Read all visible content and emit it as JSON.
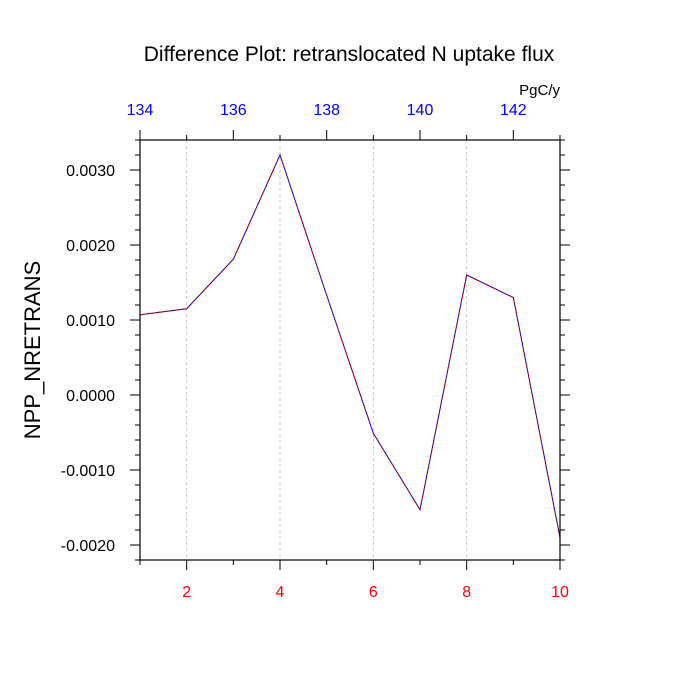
{
  "chart_data": {
    "type": "line",
    "title": "Difference Plot: retranslocated N uptake flux",
    "ylabel": "NPP_NRETRANS",
    "top_axis_unit": "PgC/y",
    "xlim": [
      1,
      10
    ],
    "ylim": [
      -0.0022,
      0.0034
    ],
    "x_ticks": [
      2,
      4,
      6,
      8,
      10
    ],
    "x_tick_labels": [
      "2",
      "4",
      "6",
      "8",
      "10"
    ],
    "y_ticks": [
      0.003,
      0.002,
      0.001,
      0.0,
      -0.001,
      -0.002
    ],
    "y_tick_labels": [
      "0.0030",
      "0.0020",
      "0.0010",
      "0.0000",
      "-0.0010",
      "-0.0020"
    ],
    "top_axis": {
      "xlim": [
        134,
        143
      ],
      "ticks": [
        134,
        136,
        138,
        140,
        142
      ],
      "tick_labels": [
        "134",
        "136",
        "138",
        "140",
        "142"
      ]
    },
    "grid": "vertical-dashed",
    "x": [
      1,
      2,
      3,
      4,
      5,
      6,
      7,
      8,
      9,
      10
    ],
    "series": [
      {
        "values": [
          0.00107,
          0.00115,
          0.00181,
          0.0032,
          0.00133,
          -0.00051,
          -0.00153,
          0.0016,
          0.0013,
          -0.0019
        ],
        "color": "#800080"
      }
    ],
    "colors": {
      "line": "#800080",
      "bottom_ticks": "#ff0000",
      "top_ticks": "#0000ff",
      "frame": "#000000",
      "grid": "#bbbbbb"
    }
  }
}
